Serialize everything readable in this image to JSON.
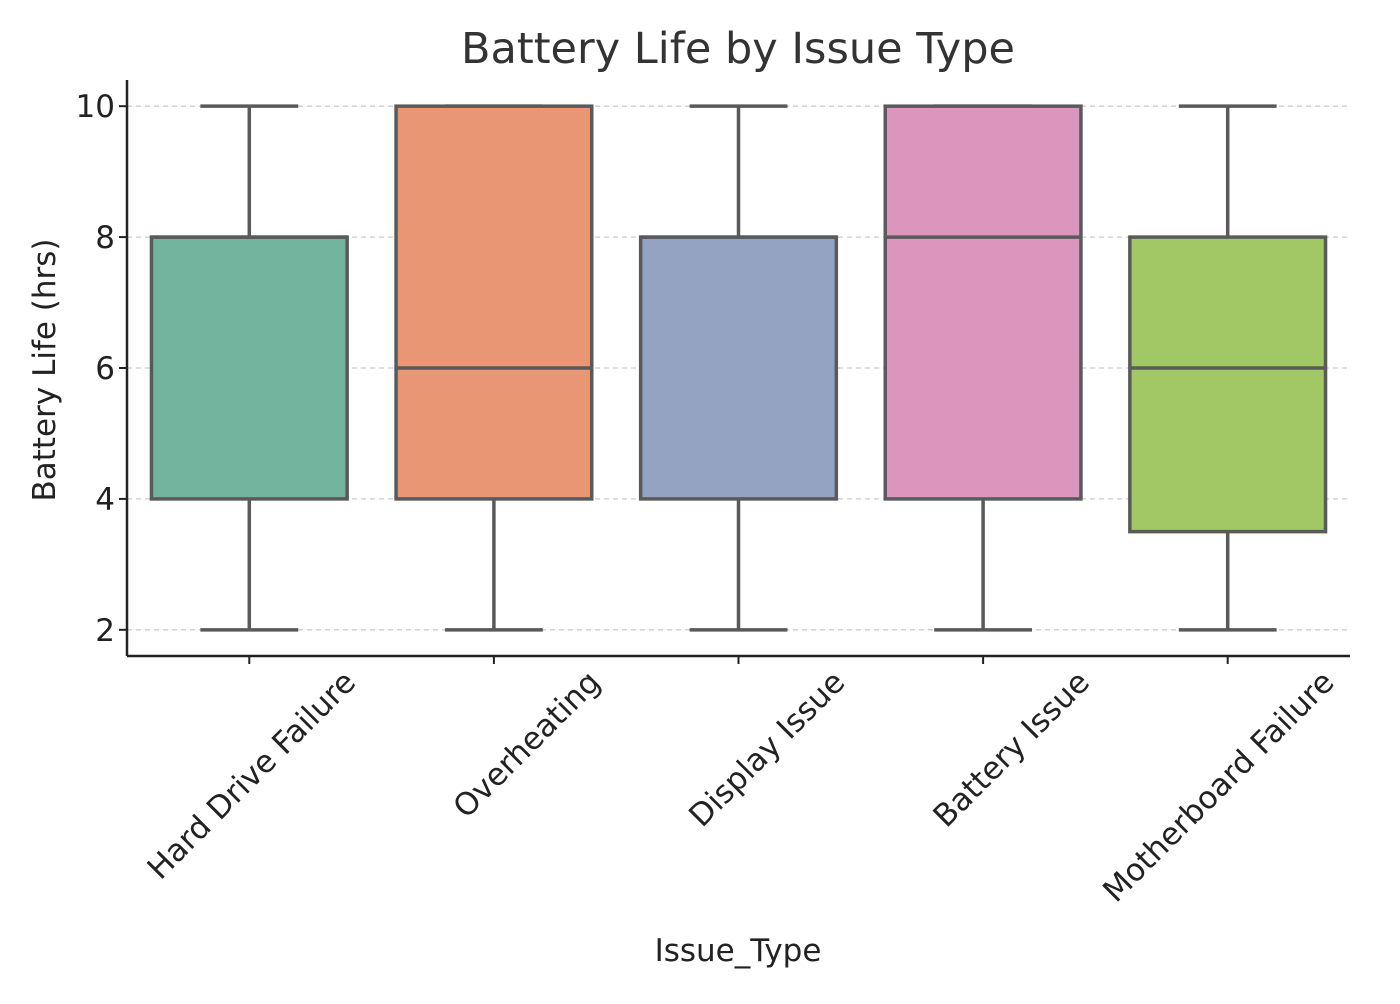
{
  "chart_data": {
    "type": "box",
    "title": "Battery Life by Issue Type",
    "xlabel": "Issue_Type",
    "ylabel": "Battery Life (hrs)",
    "ylim": [
      1.6,
      10.4
    ],
    "yticks": [
      2,
      4,
      6,
      8,
      10
    ],
    "grid": "horizontal-dashed",
    "categories": [
      "Hard Drive Failure",
      "Overheating",
      "Display Issue",
      "Battery Issue",
      "Motherboard Failure"
    ],
    "boxes": [
      {
        "category": "Hard Drive Failure",
        "min": 2,
        "q1": 4,
        "median": 8,
        "q3": 8,
        "max": 10
      },
      {
        "category": "Overheating",
        "min": 2,
        "q1": 4,
        "median": 6,
        "q3": 10,
        "max": 10
      },
      {
        "category": "Display Issue",
        "min": 2,
        "q1": 4,
        "median": 8,
        "q3": 8,
        "max": 10
      },
      {
        "category": "Battery Issue",
        "min": 2,
        "q1": 4,
        "median": 8,
        "q3": 10,
        "max": 10
      },
      {
        "category": "Motherboard Failure",
        "min": 2,
        "q1": 3.5,
        "median": 6,
        "q3": 8,
        "max": 10
      }
    ],
    "colors": [
      "#73b49f",
      "#e89674",
      "#93a3c1",
      "#dc96be",
      "#a2c866"
    ],
    "line_color": "#5a5a5a",
    "grid_color": "#cccccc",
    "axis_color": "#222222"
  }
}
